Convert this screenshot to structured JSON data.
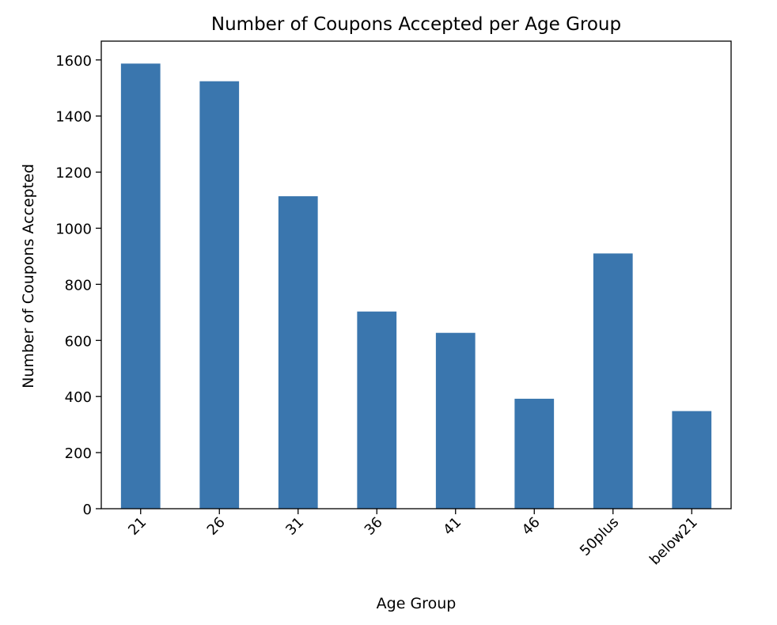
{
  "chart_data": {
    "type": "bar",
    "title": "Number of Coupons Accepted per Age Group",
    "xlabel": "Age Group",
    "ylabel": "Number of Coupons Accepted",
    "categories": [
      "21",
      "26",
      "31",
      "36",
      "41",
      "46",
      "50plus",
      "below21"
    ],
    "values": [
      1587,
      1524,
      1114,
      703,
      627,
      392,
      910,
      348
    ],
    "ylim": [
      0,
      1667
    ],
    "yticks": [
      0,
      200,
      400,
      600,
      800,
      1000,
      1200,
      1400,
      1600
    ],
    "ytick_labels": [
      "0",
      "200",
      "400",
      "600",
      "800",
      "1000",
      "1200",
      "1400",
      "1600"
    ],
    "grid": false,
    "legend": "none",
    "bar_color": "#3a76ae"
  }
}
